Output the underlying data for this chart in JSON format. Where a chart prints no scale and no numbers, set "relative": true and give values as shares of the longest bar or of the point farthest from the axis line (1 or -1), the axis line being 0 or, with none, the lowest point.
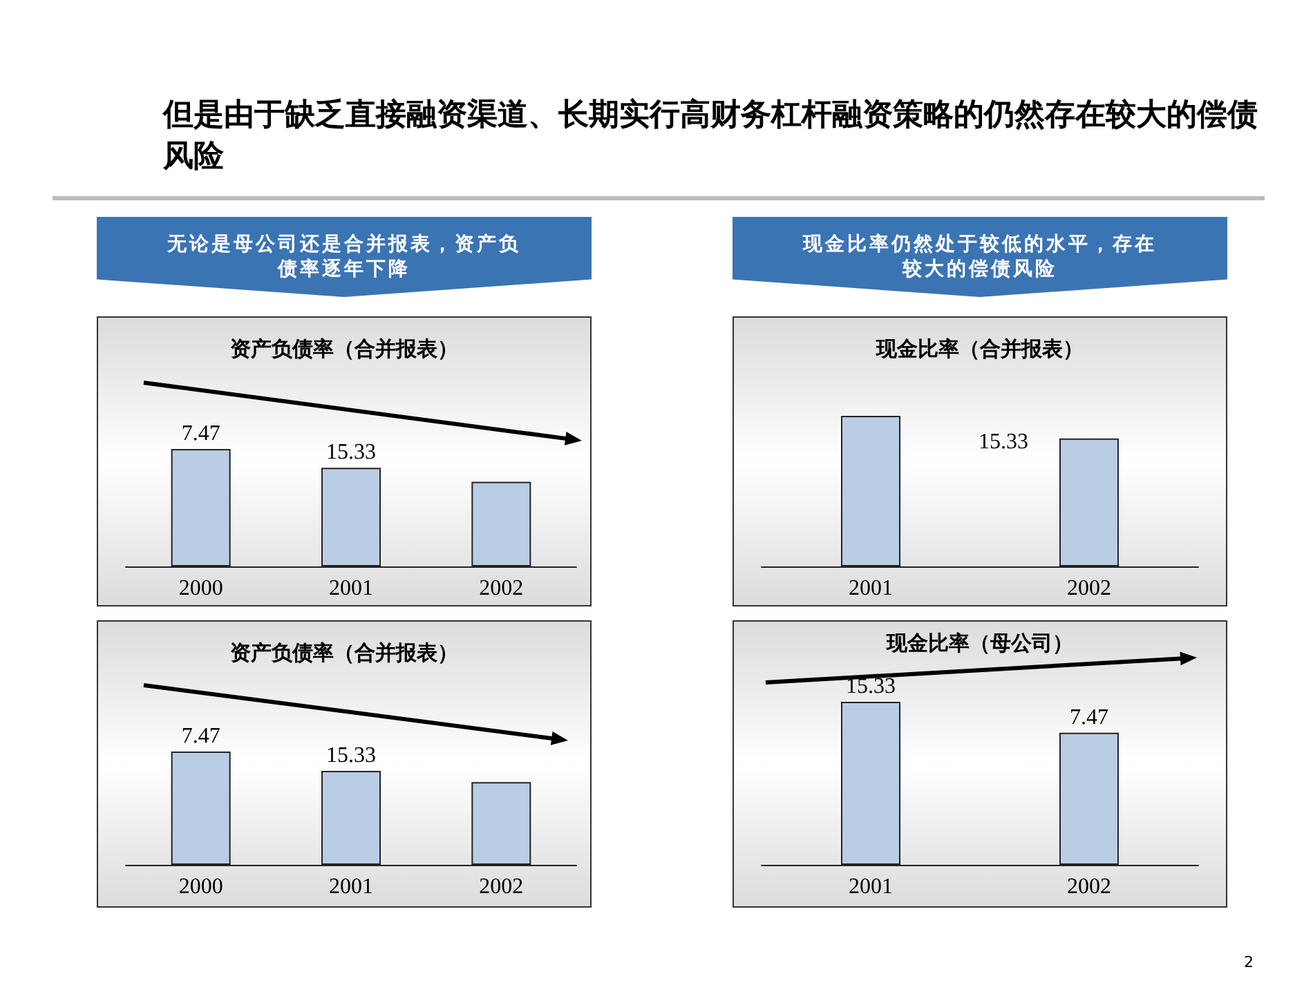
{
  "chart_data": [
    {
      "type": "bar",
      "title": "资产负债率（合并报表）",
      "categories": [
        "2000",
        "2001",
        "2002"
      ],
      "relative": true,
      "annotations": [
        "但是由于缺乏直接融资渠道、长期实行高财务杠杆融资策略的仍然存在较大的偿债风险",
        "无论是母公司还是合并报表，资产负债率逐年下降",
        "7.47",
        "15.33"
      ],
      "series": [
        {
          "color": "#b9cde5",
          "values": [
            1,
            0.84,
            0.72
          ]
        }
      ]
    },
    {
      "type": "bar",
      "title": "现金比率（合并报表）",
      "categories": [
        "2001",
        "2002"
      ],
      "relative": true,
      "annotations": [
        "现金比率仍然处于较低的水平，存在较大的偿债风险",
        "15.33"
      ],
      "series": [
        {
          "color": "#b9cde5",
          "values": [
            1,
            0.85
          ]
        }
      ]
    },
    {
      "type": "bar",
      "title": "资产负债率（合并报表）",
      "categories": [
        "2000",
        "2001",
        "2002"
      ],
      "relative": true,
      "annotations": [
        "7.47",
        "15.33"
      ],
      "series": [
        {
          "color": "#b9cde5",
          "values": [
            1,
            0.83,
            0.73
          ]
        }
      ]
    },
    {
      "type": "bar",
      "title": "现金比率（母公司）",
      "categories": [
        "2001",
        "2002"
      ],
      "relative": true,
      "annotations": [
        "15.33",
        "7.47",
        "2"
      ],
      "series": [
        {
          "color": "#b9cde5",
          "values": [
            1,
            0.81
          ]
        }
      ]
    }
  ]
}
